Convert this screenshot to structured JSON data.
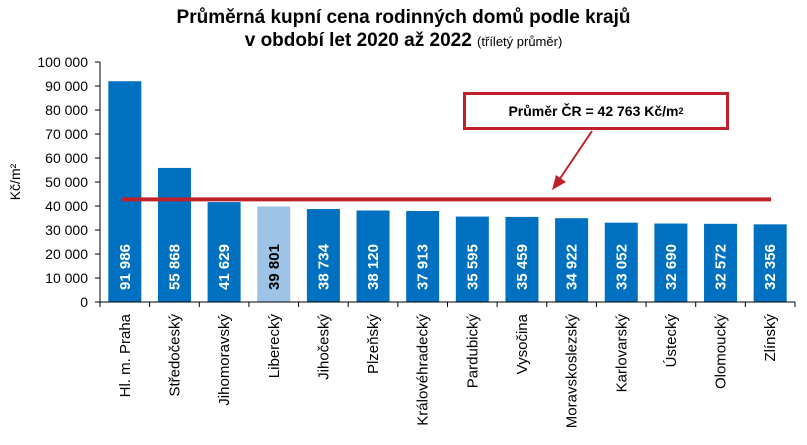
{
  "title": {
    "line1": "Průměrná kupní cena rodinných domů podle krajů",
    "line2": "v období let 2020 až 2022",
    "line2_sub": "(tříletý průměr)"
  },
  "annotation": {
    "text": "Průměr ČR = 42 763 Kč/m",
    "sup": "2"
  },
  "colors": {
    "bar": "#0070c0",
    "highlight": "#9dc3e6",
    "average": "#c0202a",
    "grid": "#000000"
  },
  "chart_data": {
    "type": "bar",
    "ylabel": "Kč/m²",
    "ylim": [
      0,
      100000
    ],
    "yticks": [
      0,
      10000,
      20000,
      30000,
      40000,
      50000,
      60000,
      70000,
      80000,
      90000,
      100000
    ],
    "ytick_labels": [
      "0",
      "10 000",
      "20 000",
      "30 000",
      "40 000",
      "50 000",
      "60 000",
      "70 000",
      "80 000",
      "90 000",
      "100 000"
    ],
    "categories": [
      "Hl. m. Praha",
      "Středočeský",
      "Jihomoravský",
      "Liberecký",
      "Jihočeský",
      "Plzeňský",
      "Královéhradecký",
      "Pardubický",
      "Vysočina",
      "Moravskoslezský",
      "Karlovarský",
      "Ústecký",
      "Olomoucký",
      "Zlínský"
    ],
    "values": [
      91986,
      55868,
      41629,
      39801,
      38734,
      38120,
      37913,
      35595,
      35459,
      34922,
      33052,
      32690,
      32572,
      32356
    ],
    "value_labels": [
      "91 986",
      "55 868",
      "41 629",
      "39 801",
      "38 734",
      "38 120",
      "37 913",
      "35 595",
      "35 459",
      "34 922",
      "33 052",
      "32 690",
      "32 572",
      "32 356"
    ],
    "highlight_index": 3,
    "average": 42763
  }
}
